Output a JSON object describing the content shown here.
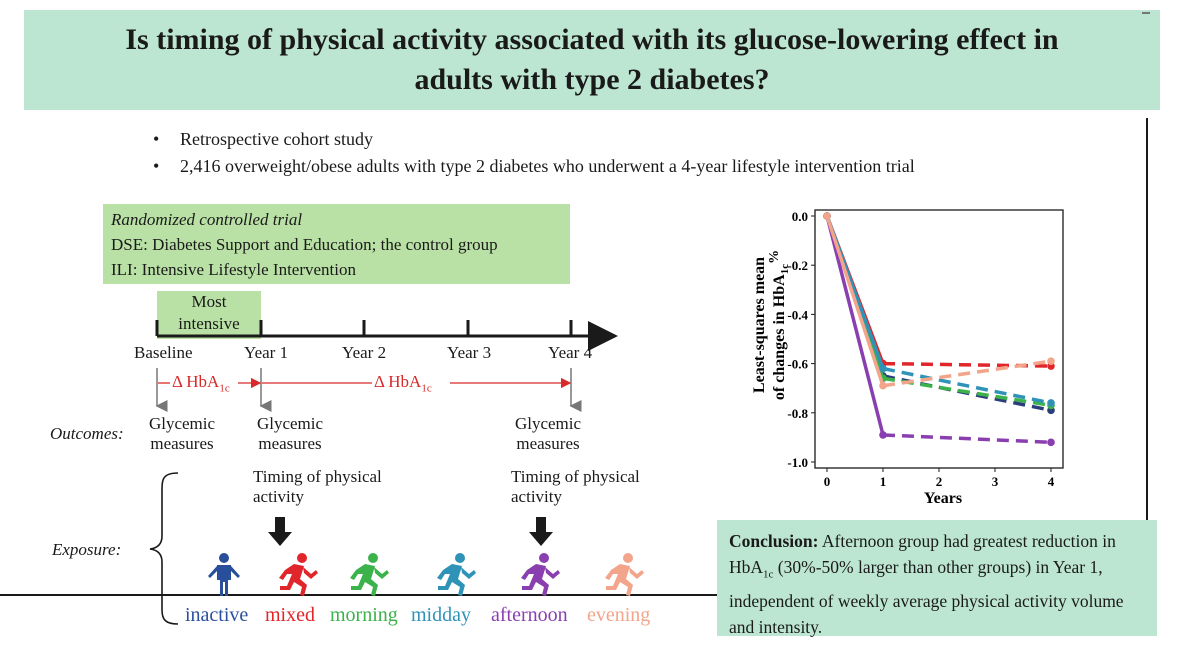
{
  "title": "Is timing of physical activity associated with its glucose-lowering effect in adults with type 2 diabetes?",
  "bullets": [
    "Retrospective cohort study",
    "2,416 overweight/obese adults with type 2 diabetes who underwent a 4-year lifestyle intervention trial"
  ],
  "rct": {
    "heading": "Randomized controlled trial",
    "dse": "DSE: Diabetes Support and Education; the control group",
    "ili": "ILI: Intensive Lifestyle Intervention"
  },
  "timeline": {
    "most_intensive": "Most intensive",
    "points": [
      "Baseline",
      "Year 1",
      "Year 2",
      "Year 3",
      "Year 4"
    ],
    "delta1": "Δ HbA",
    "delta2": "Δ HbA",
    "delta_sub": "1c",
    "outcomes_label": "Outcomes:",
    "glycemic": "Glycemic measures",
    "timing": "Timing of physical activity",
    "exposure_label": "Exposure:"
  },
  "groups": [
    {
      "name": "inactive",
      "color": "#2a4f9a"
    },
    {
      "name": "mixed",
      "color": "#e0262b"
    },
    {
      "name": "morning",
      "color": "#3bb24a"
    },
    {
      "name": "midday",
      "color": "#2f93b8"
    },
    {
      "name": "afternoon",
      "color": "#8a3fb0"
    },
    {
      "name": "evening",
      "color": "#f2a58a"
    }
  ],
  "conclusion": {
    "lead": "Conclusion:",
    "text1": "Afternoon group had greatest reduction in HbA",
    "sub": "1c",
    "text2": "(30%-50% larger than other groups) in Year 1, independent of weekly average physical activity volume and intensity."
  },
  "chart_data": {
    "type": "line",
    "xlabel": "Years",
    "ylabel_line1": "Least-squares mean",
    "ylabel_line2": "of changes in HbA",
    "ylabel_sub": "1c",
    "ylabel_unit": "%",
    "xticks": [
      0,
      1,
      2,
      3,
      4
    ],
    "yticks": [
      0.0,
      -0.2,
      -0.4,
      -0.6,
      -0.8,
      -1.0
    ],
    "ylim": [
      -1.0,
      0.0
    ],
    "xlim": [
      0,
      4
    ],
    "series": [
      {
        "color": "#2a3f7a",
        "points": [
          [
            0,
            0.0
          ],
          [
            1,
            -0.65
          ],
          [
            4,
            -0.79
          ]
        ]
      },
      {
        "color": "#e0262b",
        "points": [
          [
            0,
            0.0
          ],
          [
            1,
            -0.6
          ],
          [
            4,
            -0.61
          ]
        ]
      },
      {
        "color": "#3bb24a",
        "points": [
          [
            0,
            0.0
          ],
          [
            1,
            -0.66
          ],
          [
            4,
            -0.77
          ]
        ]
      },
      {
        "color": "#2f93b8",
        "points": [
          [
            0,
            0.0
          ],
          [
            1,
            -0.62
          ],
          [
            4,
            -0.76
          ]
        ]
      },
      {
        "color": "#8a3fb0",
        "points": [
          [
            0,
            0.0
          ],
          [
            1,
            -0.89
          ],
          [
            4,
            -0.92
          ]
        ]
      },
      {
        "color": "#f2a58a",
        "points": [
          [
            0,
            0.0
          ],
          [
            1,
            -0.69
          ],
          [
            4,
            -0.59
          ]
        ]
      }
    ]
  }
}
